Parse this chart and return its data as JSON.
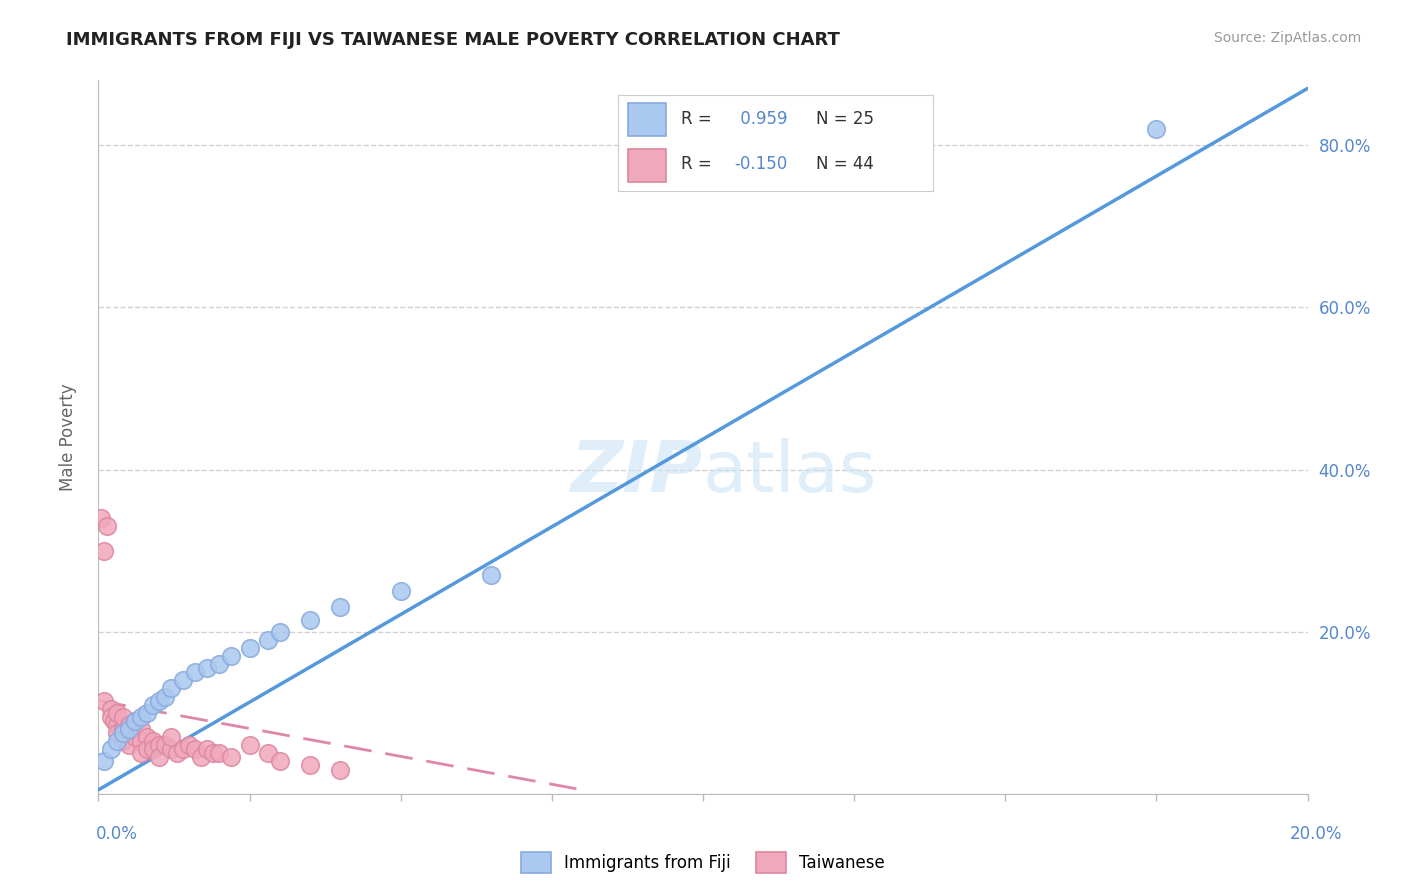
{
  "title": "IMMIGRANTS FROM FIJI VS TAIWANESE MALE POVERTY CORRELATION CHART",
  "source": "Source: ZipAtlas.com",
  "ylabel": "Male Poverty",
  "xmin": 0.0,
  "xmax": 0.2,
  "ymin": 0.0,
  "ymax": 0.88,
  "yticks": [
    0.0,
    0.2,
    0.4,
    0.6,
    0.8
  ],
  "ytick_labels": [
    "",
    "20.0%",
    "40.0%",
    "60.0%",
    "80.0%"
  ],
  "xticks": [
    0.0,
    0.025,
    0.05,
    0.075,
    0.1,
    0.125,
    0.15,
    0.175,
    0.2
  ],
  "legend_label1": "Immigrants from Fiji",
  "legend_label2": "Taiwanese",
  "R_fiji": 0.959,
  "N_fiji": 25,
  "R_taiwanese": -0.15,
  "N_taiwanese": 44,
  "color_fiji": "#aac8f0",
  "color_taiwanese": "#f0a8bc",
  "color_fiji_dark": "#88aadd",
  "color_taiwanese_dark": "#dd88a0",
  "color_line_fiji": "#5599dd",
  "color_line_taiwanese": "#dd88aa",
  "fiji_x": [
    0.001,
    0.002,
    0.003,
    0.004,
    0.005,
    0.006,
    0.007,
    0.008,
    0.009,
    0.01,
    0.011,
    0.012,
    0.014,
    0.016,
    0.018,
    0.02,
    0.022,
    0.025,
    0.028,
    0.03,
    0.035,
    0.04,
    0.05,
    0.065,
    0.175
  ],
  "fiji_y": [
    0.04,
    0.055,
    0.065,
    0.075,
    0.08,
    0.09,
    0.095,
    0.1,
    0.11,
    0.115,
    0.12,
    0.13,
    0.14,
    0.15,
    0.155,
    0.16,
    0.17,
    0.18,
    0.19,
    0.2,
    0.215,
    0.23,
    0.25,
    0.27,
    0.82
  ],
  "taiwanese_x": [
    0.0005,
    0.001,
    0.001,
    0.0015,
    0.002,
    0.002,
    0.0025,
    0.003,
    0.003,
    0.003,
    0.004,
    0.004,
    0.004,
    0.005,
    0.005,
    0.005,
    0.006,
    0.006,
    0.007,
    0.007,
    0.007,
    0.008,
    0.008,
    0.009,
    0.009,
    0.01,
    0.01,
    0.011,
    0.012,
    0.012,
    0.013,
    0.014,
    0.015,
    0.016,
    0.017,
    0.018,
    0.019,
    0.02,
    0.022,
    0.025,
    0.028,
    0.03,
    0.035,
    0.04
  ],
  "taiwanese_y": [
    0.34,
    0.3,
    0.115,
    0.33,
    0.105,
    0.095,
    0.09,
    0.085,
    0.1,
    0.075,
    0.08,
    0.095,
    0.065,
    0.085,
    0.075,
    0.06,
    0.09,
    0.07,
    0.08,
    0.065,
    0.05,
    0.07,
    0.055,
    0.065,
    0.055,
    0.06,
    0.045,
    0.06,
    0.055,
    0.07,
    0.05,
    0.055,
    0.06,
    0.055,
    0.045,
    0.055,
    0.05,
    0.05,
    0.045,
    0.06,
    0.05,
    0.04,
    0.035,
    0.03
  ],
  "fiji_line_x": [
    0.0,
    0.2
  ],
  "fiji_line_y": [
    0.005,
    0.87
  ],
  "taiwan_line_x": [
    0.0,
    0.08
  ],
  "taiwan_line_y": [
    0.115,
    0.005
  ]
}
